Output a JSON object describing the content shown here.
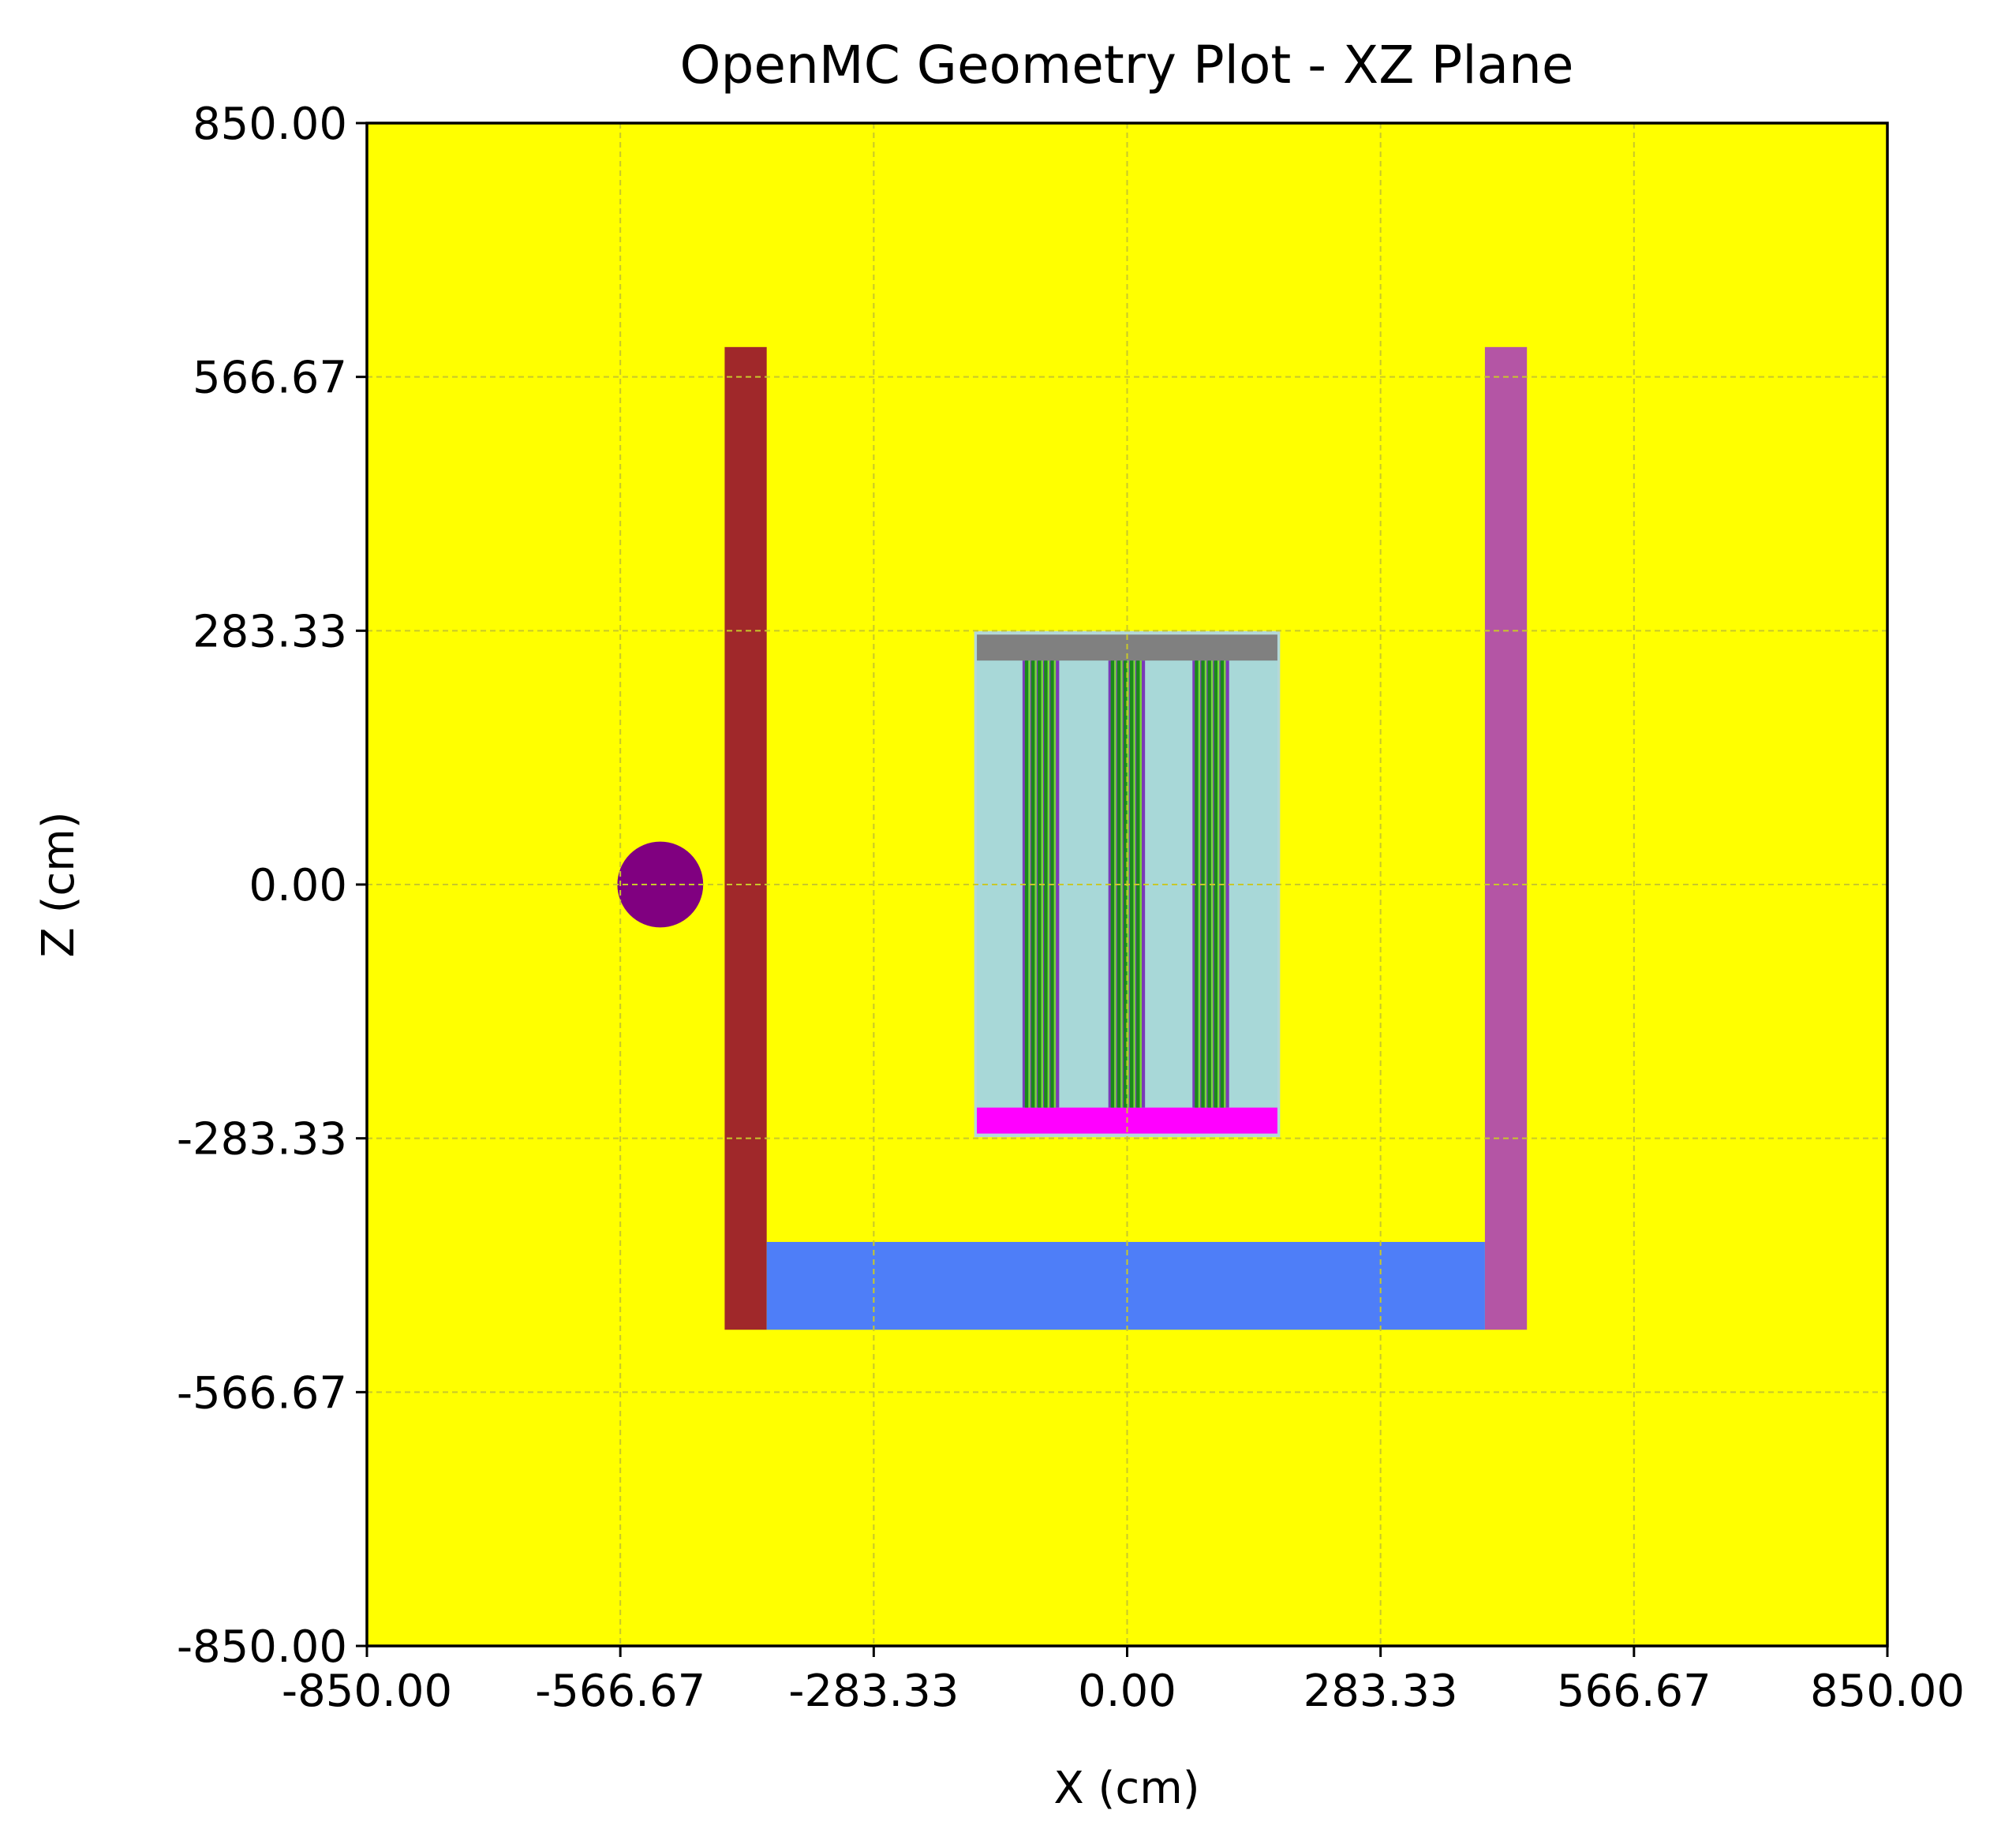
{
  "chart_data": {
    "type": "geometry-slice",
    "title": "OpenMC Geometry Plot - XZ Plane",
    "xlabel": "X (cm)",
    "ylabel": "Z (cm)",
    "xlim": [
      -850,
      850
    ],
    "ylim": [
      -850,
      850
    ],
    "x_ticks": [
      -850,
      -566.67,
      -283.33,
      0,
      283.33,
      566.67,
      850
    ],
    "y_ticks": [
      -850,
      -566.67,
      -283.33,
      0,
      283.33,
      566.67,
      850
    ],
    "x_tick_labels": [
      "-850.00",
      "-566.67",
      "-283.33",
      "0.00",
      "283.33",
      "566.67",
      "850.00"
    ],
    "y_tick_labels": [
      "-850.00",
      "-566.67",
      "-283.33",
      "0.00",
      "283.33",
      "566.67",
      "850.00"
    ],
    "grid": true,
    "background_color": "#ffff00",
    "grid_color": "#c8c82a",
    "regions": [
      {
        "name": "left-wall",
        "shape": "rect",
        "x": [
          -450,
          -403
        ],
        "z": [
          -497,
          600
        ],
        "color": "#a0282a"
      },
      {
        "name": "right-wall",
        "shape": "rect",
        "x": [
          400,
          447
        ],
        "z": [
          -497,
          600
        ],
        "color": "#b455a5"
      },
      {
        "name": "floor-slab",
        "shape": "rect",
        "x": [
          -403,
          400
        ],
        "z": [
          -497,
          -399
        ],
        "color": "#4e7ef8"
      },
      {
        "name": "source-sphere",
        "shape": "circle",
        "cx": -522,
        "cz": 0,
        "r": 48,
        "color": "#800080"
      },
      {
        "name": "core-tank-outline",
        "shape": "rect",
        "x": [
          -171,
          171
        ],
        "z": [
          -282,
          283
        ],
        "color": "#b4d8d8"
      },
      {
        "name": "core-coolant",
        "shape": "rect",
        "x": [
          -168,
          168
        ],
        "z": [
          -278,
          279
        ],
        "color": "#a8d8d8"
      },
      {
        "name": "top-plate",
        "shape": "rect",
        "x": [
          -168,
          168
        ],
        "z": [
          250,
          279
        ],
        "color": "#808080"
      },
      {
        "name": "bottom-plate",
        "shape": "rect",
        "x": [
          -168,
          168
        ],
        "z": [
          -278,
          -249
        ],
        "color": "#ff00ff"
      }
    ],
    "fuel_assemblies": [
      {
        "name": "fuel-assembly-left",
        "x": [
          -117,
          -76
        ],
        "z": [
          -249,
          250
        ]
      },
      {
        "name": "fuel-assembly-center",
        "x": [
          -21,
          20
        ],
        "z": [
          -249,
          250
        ]
      },
      {
        "name": "fuel-assembly-right",
        "x": [
          73,
          114
        ],
        "z": [
          -249,
          250
        ]
      }
    ],
    "fuel_colors": {
      "cladding": "#7a3ab8",
      "fuel": "#1a8a1a",
      "gap": "#7ad83a"
    }
  }
}
